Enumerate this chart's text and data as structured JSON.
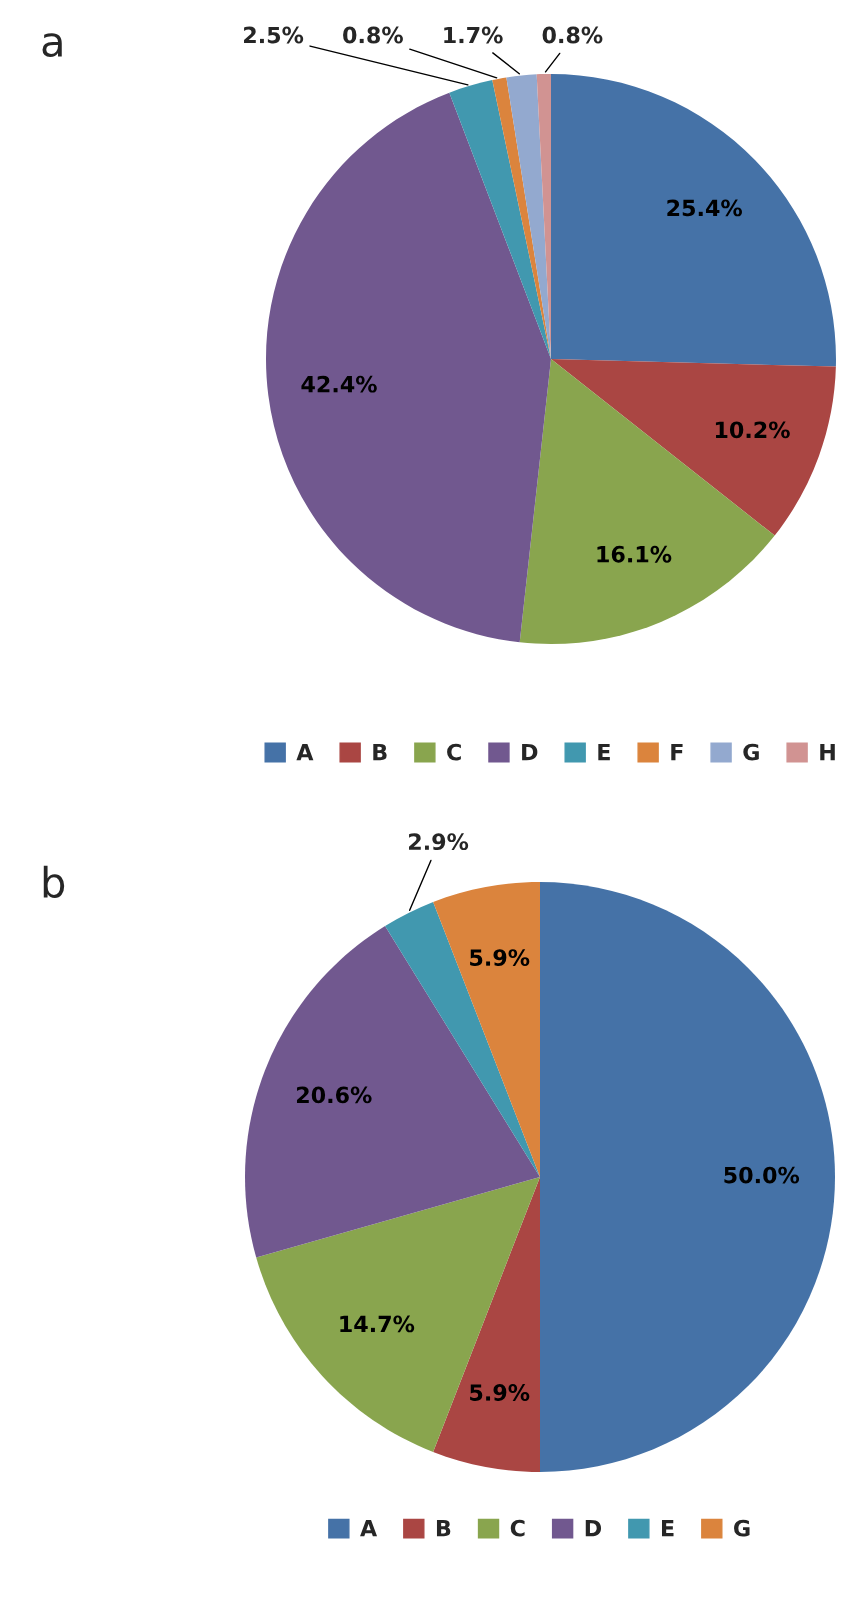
{
  "chart_data": [
    {
      "type": "pie",
      "title": "a",
      "categories": [
        "A",
        "B",
        "C",
        "D",
        "E",
        "F",
        "G",
        "H"
      ],
      "values": [
        25.4,
        10.2,
        16.1,
        42.4,
        2.5,
        0.8,
        1.7,
        0.8
      ],
      "value_labels": [
        "25.4%",
        "10.2%",
        "16.1%",
        "42.4%",
        "2.5%",
        "0.8%",
        "1.7%",
        "0.8%"
      ],
      "colors": [
        "#4572a7",
        "#aa4643",
        "#89a54e",
        "#71588f",
        "#4198af",
        "#db843d",
        "#93a9cf",
        "#d19392"
      ],
      "legend": "bottom"
    },
    {
      "type": "pie",
      "title": "b",
      "categories": [
        "A",
        "B",
        "C",
        "D",
        "E",
        "G"
      ],
      "values": [
        50.0,
        5.9,
        14.7,
        20.6,
        2.9,
        5.9
      ],
      "value_labels": [
        "50.0%",
        "5.9%",
        "14.7%",
        "20.6%",
        "2.9%",
        "5.9%"
      ],
      "colors": [
        "#4572a7",
        "#aa4643",
        "#89a54e",
        "#71588f",
        "#4198af",
        "#db843d"
      ],
      "legend": "bottom"
    }
  ]
}
